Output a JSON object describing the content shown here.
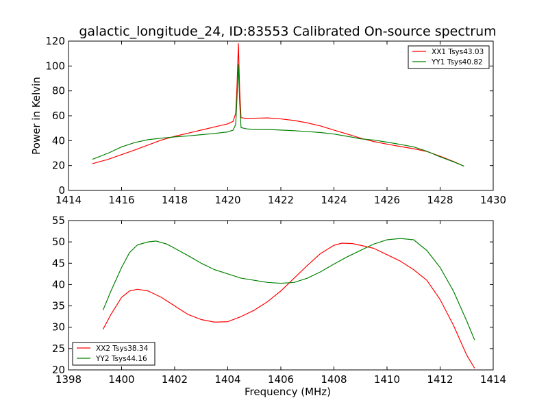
{
  "chart_data": [
    {
      "type": "line",
      "title": "galactic_longitude_24, ID:83553 Calibrated On-source spectrum",
      "xlabel": "",
      "ylabel": "Power in Kelvin",
      "xlim": [
        1414,
        1430
      ],
      "ylim": [
        0,
        120
      ],
      "xticks": [
        1414,
        1416,
        1418,
        1420,
        1422,
        1424,
        1426,
        1428,
        1430
      ],
      "yticks": [
        0,
        20,
        40,
        60,
        80,
        100,
        120
      ],
      "grid": false,
      "legend": "top-right",
      "series": [
        {
          "name": "XX1 Tsys43.03",
          "color": "#ff0000",
          "points": [
            [
              1414.9,
              21.5
            ],
            [
              1415.5,
              25
            ],
            [
              1416,
              28.8
            ],
            [
              1416.5,
              32.5
            ],
            [
              1417,
              36.5
            ],
            [
              1417.5,
              40.5
            ],
            [
              1418,
              43.5
            ],
            [
              1418.5,
              46
            ],
            [
              1419,
              48.5
            ],
            [
              1419.5,
              51
            ],
            [
              1420,
              53.5
            ],
            [
              1420.2,
              55.5
            ],
            [
              1420.3,
              62
            ],
            [
              1420.35,
              85
            ],
            [
              1420.4,
              118
            ],
            [
              1420.45,
              80
            ],
            [
              1420.5,
              58.5
            ],
            [
              1420.7,
              57.8
            ],
            [
              1421,
              58
            ],
            [
              1421.5,
              58.3
            ],
            [
              1422,
              57.5
            ],
            [
              1422.5,
              56.2
            ],
            [
              1423,
              54.3
            ],
            [
              1423.5,
              51.8
            ],
            [
              1424,
              48.5
            ],
            [
              1424.5,
              45.3
            ],
            [
              1425,
              42
            ],
            [
              1425.5,
              39.3
            ],
            [
              1426,
              37.2
            ],
            [
              1426.5,
              35.3
            ],
            [
              1427,
              33.5
            ],
            [
              1427.5,
              31.3
            ],
            [
              1428,
              27.5
            ],
            [
              1428.5,
              23.3
            ],
            [
              1428.9,
              19.5
            ]
          ]
        },
        {
          "name": "YY1 Tsys40.82",
          "color": "#008000",
          "points": [
            [
              1414.9,
              25
            ],
            [
              1415.5,
              30
            ],
            [
              1416,
              35
            ],
            [
              1416.5,
              38.5
            ],
            [
              1417,
              40.8
            ],
            [
              1417.5,
              42
            ],
            [
              1418,
              43
            ],
            [
              1418.5,
              43.8
            ],
            [
              1419,
              44.8
            ],
            [
              1419.5,
              45.8
            ],
            [
              1420,
              47
            ],
            [
              1420.2,
              48.5
            ],
            [
              1420.3,
              53
            ],
            [
              1420.35,
              75
            ],
            [
              1420.4,
              101
            ],
            [
              1420.45,
              70
            ],
            [
              1420.5,
              50.5
            ],
            [
              1420.7,
              49.5
            ],
            [
              1421,
              49
            ],
            [
              1421.5,
              49
            ],
            [
              1422,
              48.5
            ],
            [
              1422.5,
              48
            ],
            [
              1423,
              47.3
            ],
            [
              1423.5,
              46.5
            ],
            [
              1424,
              45.3
            ],
            [
              1424.5,
              43.5
            ],
            [
              1425,
              41.5
            ],
            [
              1425.5,
              40.5
            ],
            [
              1426,
              38.8
            ],
            [
              1426.5,
              37
            ],
            [
              1427,
              35
            ],
            [
              1427.5,
              31.5
            ],
            [
              1428,
              27
            ],
            [
              1428.5,
              23
            ],
            [
              1428.9,
              19.5
            ]
          ]
        }
      ]
    },
    {
      "type": "line",
      "title": "",
      "xlabel": "Frequency (MHz)",
      "ylabel": "",
      "xlim": [
        1398,
        1414
      ],
      "ylim": [
        20,
        55
      ],
      "xticks": [
        1398,
        1400,
        1402,
        1404,
        1406,
        1408,
        1410,
        1412,
        1414
      ],
      "yticks": [
        20,
        25,
        30,
        35,
        40,
        45,
        50,
        55
      ],
      "grid": false,
      "legend": "bottom-left",
      "series": [
        {
          "name": "XX2 Tsys38.34",
          "color": "#ff0000",
          "points": [
            [
              1399.3,
              29.5
            ],
            [
              1399.6,
              33
            ],
            [
              1400,
              37
            ],
            [
              1400.3,
              38.5
            ],
            [
              1400.6,
              38.9
            ],
            [
              1401,
              38.5
            ],
            [
              1401.5,
              37
            ],
            [
              1402,
              35
            ],
            [
              1402.5,
              33
            ],
            [
              1403,
              31.8
            ],
            [
              1403.5,
              31.2
            ],
            [
              1404,
              31.3
            ],
            [
              1404.5,
              32.5
            ],
            [
              1405,
              34
            ],
            [
              1405.5,
              36
            ],
            [
              1406,
              38.5
            ],
            [
              1406.5,
              41.5
            ],
            [
              1407,
              44.5
            ],
            [
              1407.5,
              47.3
            ],
            [
              1408,
              49.2
            ],
            [
              1408.3,
              49.7
            ],
            [
              1408.7,
              49.6
            ],
            [
              1409,
              49.2
            ],
            [
              1409.5,
              48.5
            ],
            [
              1410,
              47
            ],
            [
              1410.5,
              45.5
            ],
            [
              1411,
              43.5
            ],
            [
              1411.5,
              41
            ],
            [
              1412,
              36.5
            ],
            [
              1412.5,
              30.5
            ],
            [
              1413,
              23.5
            ],
            [
              1413.3,
              20.4
            ]
          ]
        },
        {
          "name": "YY2 Tsys44.16",
          "color": "#008000",
          "points": [
            [
              1399.3,
              34
            ],
            [
              1399.6,
              38.5
            ],
            [
              1400,
              44
            ],
            [
              1400.3,
              47.5
            ],
            [
              1400.6,
              49.3
            ],
            [
              1401,
              50
            ],
            [
              1401.3,
              50.2
            ],
            [
              1401.7,
              49.5
            ],
            [
              1402,
              48.5
            ],
            [
              1402.5,
              46.8
            ],
            [
              1403,
              45
            ],
            [
              1403.5,
              43.5
            ],
            [
              1404,
              42.5
            ],
            [
              1404.5,
              41.5
            ],
            [
              1405,
              41
            ],
            [
              1405.5,
              40.5
            ],
            [
              1406,
              40.3
            ],
            [
              1406.5,
              40.5
            ],
            [
              1407,
              41.5
            ],
            [
              1407.5,
              43
            ],
            [
              1408,
              44.8
            ],
            [
              1408.5,
              46.5
            ],
            [
              1409,
              48
            ],
            [
              1409.5,
              49.5
            ],
            [
              1410,
              50.5
            ],
            [
              1410.5,
              50.8
            ],
            [
              1411,
              50.5
            ],
            [
              1411.5,
              48
            ],
            [
              1412,
              44
            ],
            [
              1412.5,
              38.5
            ],
            [
              1413,
              31.5
            ],
            [
              1413.3,
              27
            ]
          ]
        }
      ]
    }
  ]
}
